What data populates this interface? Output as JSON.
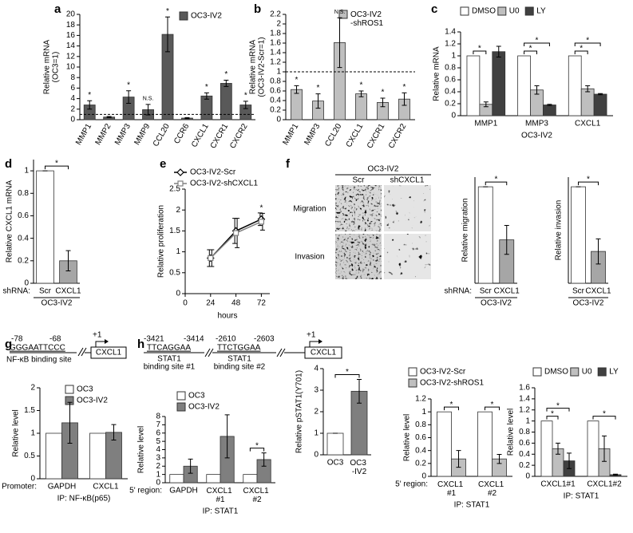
{
  "chart_data": [
    {
      "type": "bar",
      "panel": "a",
      "ylabel": [
        "Relative mRNA",
        "(OC3=1)"
      ],
      "ylim": [
        0,
        20
      ],
      "yticks": [
        0,
        2,
        4,
        6,
        8,
        10,
        12,
        14,
        16,
        18,
        20
      ],
      "categories": [
        "MMP1",
        "MMP2",
        "MMP3",
        "MMP9",
        "CCL20",
        "CCR6",
        "CXCL1",
        "CXCR1",
        "CXCR2"
      ],
      "rotate_labels": true,
      "hline": 1,
      "series": [
        {
          "name": "OC3-IV2",
          "color": "#595959",
          "values": [
            2.8,
            0.5,
            4.3,
            1.9,
            16.2,
            0.3,
            4.5,
            6.9,
            2.8
          ],
          "errors": [
            0.8,
            0.1,
            1.2,
            1.0,
            3.3,
            0.1,
            0.6,
            0.6,
            0.7
          ],
          "annotations": [
            "*",
            null,
            "*",
            "N.S.",
            "*",
            null,
            "*",
            "*",
            "*"
          ]
        }
      ]
    },
    {
      "type": "bar",
      "panel": "b",
      "ylabel": [
        "Relative mRNA",
        "(OC3-IV2-Scr=1)"
      ],
      "ylim": [
        0,
        2.2
      ],
      "yticks": [
        0,
        0.2,
        0.4,
        0.6,
        0.8,
        1,
        1.2,
        1.4,
        1.6,
        1.8,
        2,
        2.2
      ],
      "categories": [
        "MMP1",
        "MMP3",
        "CCL20",
        "CXCL1",
        "CXCR1",
        "CXCR2"
      ],
      "rotate_labels": true,
      "hline": 1,
      "series": [
        {
          "name": "OC3-IV2 -shROS1",
          "color": "#bfbfbf",
          "values": [
            0.63,
            0.39,
            1.61,
            0.54,
            0.36,
            0.43
          ],
          "errors": [
            0.08,
            0.15,
            0.52,
            0.06,
            0.09,
            0.13
          ],
          "annotations": [
            "*",
            "*",
            "N.S.",
            "*",
            "*",
            "*"
          ]
        }
      ]
    },
    {
      "type": "bar",
      "panel": "c",
      "ylabel": "Relative mRNA",
      "ylim": [
        0,
        1.4
      ],
      "yticks": [
        0,
        0.2,
        0.4,
        0.6,
        0.8,
        1,
        1.2,
        1.4
      ],
      "categories": [
        "MMP1",
        "MMP3",
        "CXCL1"
      ],
      "xlabel": "OC3-IV2",
      "series": [
        {
          "name": "DMSO",
          "color": "#ffffff",
          "values": [
            1,
            1,
            1
          ]
        },
        {
          "name": "U0",
          "color": "#bfbfbf",
          "values": [
            0.19,
            0.43,
            0.45
          ],
          "errors": [
            0.04,
            0.07,
            0.05
          ]
        },
        {
          "name": "LY",
          "color": "#404040",
          "values": [
            1.07,
            0.18,
            0.36
          ],
          "errors": [
            0.09,
            0.01,
            0.01
          ]
        }
      ],
      "brackets": [
        {
          "bars": [
            [
              0,
              0
            ],
            [
              0,
              1
            ]
          ],
          "label": "*"
        },
        {
          "bars": [
            [
              1,
              0
            ],
            [
              1,
              1
            ]
          ],
          "label": "*"
        },
        {
          "bars": [
            [
              1,
              0
            ],
            [
              1,
              2
            ]
          ],
          "label": "*"
        },
        {
          "bars": [
            [
              2,
              0
            ],
            [
              2,
              1
            ]
          ],
          "label": "*"
        },
        {
          "bars": [
            [
              2,
              0
            ],
            [
              2,
              2
            ]
          ],
          "label": "*"
        }
      ]
    },
    {
      "type": "bar",
      "panel": "d",
      "ylabel": "Relative CXCL1 mRNA",
      "ylim": [
        0,
        1.1
      ],
      "yticks": [
        0,
        0.2,
        0.4,
        0.6,
        0.8,
        1
      ],
      "categories": [
        "Scr",
        "CXCL1"
      ],
      "x_prefix": "shRNA:",
      "xlabel": "OC3-IV2",
      "series": [
        {
          "colors": [
            "#ffffff",
            "#a6a6a6"
          ],
          "values": [
            1,
            0.2
          ],
          "errors": [
            0,
            0.09
          ]
        }
      ],
      "brackets": [
        {
          "bars": [
            [
              0,
              0
            ],
            [
              1,
              0
            ]
          ],
          "label": "*"
        }
      ]
    },
    {
      "type": "line",
      "panel": "e",
      "ylabel": "Relative proliferation",
      "xlabel": "hours",
      "x": [
        24,
        48,
        72
      ],
      "xlim": [
        0,
        80
      ],
      "xticks": [
        0,
        24,
        48,
        72
      ],
      "ylim": [
        0,
        2.5
      ],
      "yticks": [
        0,
        0.5,
        1,
        1.5,
        2,
        2.5
      ],
      "series": [
        {
          "name": "OC3-IV2-Scr",
          "color": "#000000",
          "marker": "diamond",
          "values": [
            0.85,
            1.5,
            1.78
          ],
          "errors": [
            0.2,
            0.3,
            0.15
          ],
          "annotations": [
            null,
            null,
            "*"
          ]
        },
        {
          "name": "OC3-IV2-shCXCL1",
          "color": "#808080",
          "marker": "square",
          "values": [
            0.85,
            1.45,
            1.72
          ],
          "errors": [
            0.2,
            0.35,
            0.2
          ]
        }
      ]
    },
    {
      "type": "bar",
      "panel": "f",
      "ylabel": "Relative migration",
      "ylim": [
        0,
        1.1
      ],
      "categories": [
        "Scr",
        "CXCL1"
      ],
      "x_prefix": "shRNA:",
      "xlabel": "OC3-IV2",
      "series": [
        {
          "colors": [
            "#ffffff",
            "#a6a6a6"
          ],
          "values": [
            1,
            0.45
          ],
          "errors": [
            0,
            0.15
          ]
        }
      ],
      "brackets": [
        {
          "bars": [
            [
              0,
              0
            ],
            [
              1,
              0
            ]
          ],
          "label": "*"
        }
      ]
    },
    {
      "type": "bar",
      "ylabel": "Relative invasion",
      "ylim": [
        0,
        1.1
      ],
      "categories": [
        "Scr",
        "CXCL1"
      ],
      "xlabel": "OC3-IV2",
      "series": [
        {
          "colors": [
            "#ffffff",
            "#a6a6a6"
          ],
          "values": [
            1,
            0.33
          ],
          "errors": [
            0,
            0.13
          ]
        }
      ],
      "brackets": [
        {
          "bars": [
            [
              0,
              0
            ],
            [
              1,
              0
            ]
          ],
          "label": "*"
        }
      ]
    },
    {
      "type": "bar",
      "panel": "g",
      "ylabel": "Relative level",
      "ylim": [
        0,
        2
      ],
      "yticks": [
        0,
        0.5,
        1,
        1.5,
        2
      ],
      "categories": [
        "GAPDH",
        "CXCL1"
      ],
      "x_prefix": "Promoter:",
      "xlabel": "IP: NF-κB(p65)",
      "series": [
        {
          "name": "OC3",
          "color": "#ffffff",
          "values": [
            1,
            1
          ]
        },
        {
          "name": "OC3-IV2",
          "color": "#7f7f7f",
          "values": [
            1.23,
            1.02
          ],
          "errors": [
            0.45,
            0.17
          ]
        }
      ]
    },
    {
      "type": "bar",
      "panel": "h",
      "ylabel": "Relative level",
      "ylim": [
        0,
        8
      ],
      "yticks": [
        0,
        1,
        2,
        3,
        4,
        5,
        6,
        7,
        8
      ],
      "categories": [
        "GAPDH",
        "CXCL1 #1",
        "CXCL1 #2"
      ],
      "x_prefix": "5' region:",
      "xlabel": "IP: STAT1",
      "series": [
        {
          "name": "OC3",
          "color": "#ffffff",
          "values": [
            1,
            1,
            1
          ]
        },
        {
          "name": "OC3-IV2",
          "color": "#7f7f7f",
          "values": [
            2,
            5.6,
            2.8
          ],
          "errors": [
            0.85,
            2.6,
            0.8
          ]
        }
      ],
      "brackets": [
        {
          "bars": [
            [
              2,
              0
            ],
            [
              2,
              1
            ]
          ],
          "label": "*"
        }
      ]
    },
    {
      "type": "bar",
      "ylabel": "Relative pSTAT1(Y701)",
      "ylim": [
        0,
        4
      ],
      "yticks": [
        0,
        1,
        2,
        3,
        4
      ],
      "categories": [
        "OC3",
        "OC3 -IV2"
      ],
      "series": [
        {
          "colors": [
            "#ffffff",
            "#7f7f7f"
          ],
          "values": [
            1,
            2.95
          ],
          "errors": [
            0,
            0.55
          ]
        }
      ],
      "brackets": [
        {
          "bars": [
            [
              0,
              0
            ],
            [
              1,
              0
            ]
          ],
          "label": "*"
        }
      ]
    },
    {
      "type": "bar",
      "ylabel": "Relative level",
      "ylim": [
        0,
        1.2
      ],
      "yticks": [
        0,
        0.2,
        0.4,
        0.6,
        0.8,
        1,
        1.2
      ],
      "categories": [
        "CXCL1 #1",
        "CXCL1 #2"
      ],
      "x_prefix": "5' region:",
      "xlabel": "IP: STAT1",
      "series": [
        {
          "name": "OC3-IV2-Scr",
          "color": "#ffffff",
          "values": [
            1,
            1
          ]
        },
        {
          "name": "OC3-IV2-shROS1",
          "color": "#bfbfbf",
          "values": [
            0.27,
            0.27
          ],
          "errors": [
            0.13,
            0.07
          ]
        }
      ],
      "brackets": [
        {
          "bars": [
            [
              0,
              0
            ],
            [
              0,
              1
            ]
          ],
          "label": "*"
        },
        {
          "bars": [
            [
              1,
              0
            ],
            [
              1,
              1
            ]
          ],
          "label": "*"
        }
      ]
    },
    {
      "type": "bar",
      "ylabel": "Relative level",
      "ylim": [
        0,
        1.6
      ],
      "yticks": [
        0,
        0.2,
        0.4,
        0.6,
        0.8,
        1,
        1.2,
        1.4,
        1.6
      ],
      "categories": [
        "CXCL1#1",
        "CXCL1#2"
      ],
      "xlabel": "IP: STAT1",
      "series": [
        {
          "name": "DMSO",
          "color": "#ffffff",
          "values": [
            1,
            1
          ]
        },
        {
          "name": "U0",
          "color": "#bfbfbf",
          "values": [
            0.5,
            0.5
          ],
          "errors": [
            0.1,
            0.23
          ]
        },
        {
          "name": "LY",
          "color": "#404040",
          "values": [
            0.28,
            0.03
          ],
          "errors": [
            0.14,
            0.01
          ]
        }
      ],
      "brackets": [
        {
          "bars": [
            [
              0,
              0
            ],
            [
              0,
              1
            ]
          ],
          "label": "*"
        },
        {
          "bars": [
            [
              0,
              0
            ],
            [
              0,
              2
            ]
          ],
          "label": "*"
        },
        {
          "bars": [
            [
              1,
              0
            ],
            [
              1,
              2
            ]
          ],
          "label": "*"
        }
      ]
    }
  ],
  "micrographs": {
    "title": "OC3-IV2",
    "columns": [
      "Scr",
      "shCXCL1"
    ],
    "rows": [
      "Migration",
      "Invasion"
    ]
  },
  "schematic_g": {
    "start": "-78",
    "end": "-68",
    "sequence": "GGGAATTCCC",
    "site": "NF-κB binding site",
    "tss": "+1",
    "gene": "CXCL1"
  },
  "schematic_h": {
    "site1_start": "-3421",
    "site1_end": "-3414",
    "site1_sequence": "TTCAGGAA",
    "site1_label": [
      "STAT1",
      "binding site #1"
    ],
    "site2_start": "-2610",
    "site2_end": "-2603",
    "site2_sequence": "TTCTGGAA",
    "site2_label": [
      "STAT1",
      "binding site #2"
    ],
    "tss": "+1",
    "gene": "CXCL1"
  }
}
